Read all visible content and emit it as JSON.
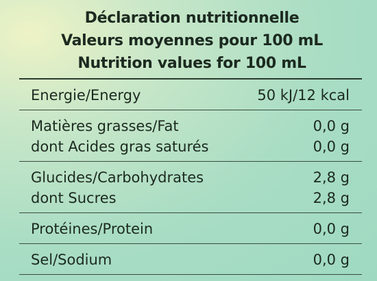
{
  "header": {
    "lines": [
      "Déclaration nutritionnelle",
      "Valeurs moyennes pour 100 mL",
      "Nutrition values for 100 mL"
    ]
  },
  "table": {
    "groups": [
      {
        "rows": [
          {
            "label": "Energie/Energy",
            "value": "50 kJ/12 kcal"
          }
        ]
      },
      {
        "rows": [
          {
            "label": "Matières grasses/Fat",
            "value": "0,0 g"
          },
          {
            "label": "dont Acides gras saturés",
            "value": "0,0 g"
          }
        ]
      },
      {
        "rows": [
          {
            "label": "Glucides/Carbohydrates",
            "value": "2,8 g"
          },
          {
            "label": "dont Sucres",
            "value": "2,8 g"
          }
        ]
      },
      {
        "rows": [
          {
            "label": "Protéines/Protein",
            "value": "0,0 g"
          }
        ]
      },
      {
        "rows": [
          {
            "label": "Sel/Sodium",
            "value": "0,0 g"
          }
        ]
      }
    ]
  }
}
